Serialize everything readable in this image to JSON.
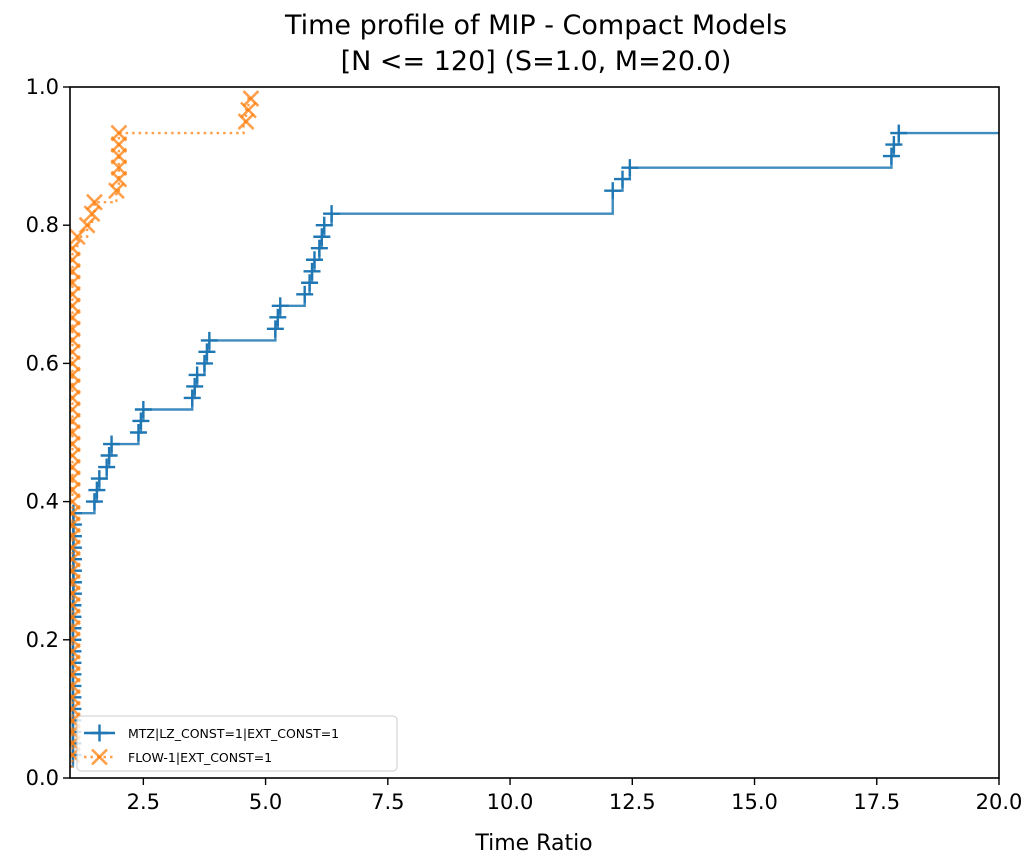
{
  "chart_data": {
    "type": "line",
    "title": "Time profile of MIP - Compact Models",
    "subtitle": "[N <= 120] (S=1.0, M=20.0)",
    "xlabel": "Time Ratio",
    "ylabel": "",
    "xlim": [
      1.0,
      20.0
    ],
    "ylim": [
      0.0,
      1.0
    ],
    "xticks": [
      "2.5",
      "5.0",
      "7.5",
      "10.0",
      "12.5",
      "15.0",
      "17.5",
      "20.0"
    ],
    "yticks": [
      "0.0",
      "0.2",
      "0.4",
      "0.6",
      "0.8",
      "1.0"
    ],
    "grid": false,
    "legend_position": "lower-left",
    "step": "post",
    "series": [
      {
        "name": "MTZ|LZ_CONST=1|EXT_CONST=1",
        "color": "#1f77b4",
        "linestyle": "solid",
        "marker": "plus",
        "x": [
          1.0,
          1.06,
          1.06,
          1.06,
          1.06,
          1.06,
          1.06,
          1.06,
          1.06,
          1.06,
          1.06,
          1.06,
          1.06,
          1.06,
          1.06,
          1.07,
          1.07,
          1.07,
          1.07,
          1.07,
          1.07,
          1.07,
          1.07,
          1.08,
          1.1,
          1.12,
          1.15,
          1.5,
          1.55,
          1.6,
          1.75,
          1.8,
          1.85,
          2.4,
          2.45,
          2.5,
          3.5,
          3.55,
          3.6,
          3.75,
          3.8,
          3.85,
          5.2,
          5.25,
          5.3,
          5.8,
          5.9,
          5.95,
          6.0,
          6.1,
          6.15,
          6.2,
          6.35,
          12.1,
          12.3,
          12.45,
          17.8,
          17.85,
          17.95,
          20.0
        ],
        "y": [
          0.0167,
          0.0333,
          0.05,
          0.0667,
          0.0833,
          0.1,
          0.1167,
          0.1333,
          0.15,
          0.1667,
          0.1833,
          0.2,
          0.2167,
          0.2333,
          0.25,
          0.2667,
          0.2833,
          0.3,
          0.3167,
          0.3333,
          0.35,
          0.3667,
          0.3833,
          0.3833,
          0.3833,
          0.3833,
          0.3833,
          0.4,
          0.4167,
          0.4333,
          0.45,
          0.4667,
          0.4833,
          0.5,
          0.5167,
          0.5333,
          0.55,
          0.5667,
          0.5833,
          0.6,
          0.6167,
          0.6333,
          0.65,
          0.6667,
          0.6833,
          0.7,
          0.7167,
          0.7333,
          0.75,
          0.7667,
          0.7833,
          0.8,
          0.8167,
          0.85,
          0.8667,
          0.8833,
          0.9,
          0.9167,
          0.9333,
          0.9333
        ],
        "markers_x": [
          1.06,
          1.06,
          1.06,
          1.06,
          1.06,
          1.06,
          1.06,
          1.06,
          1.06,
          1.06,
          1.06,
          1.06,
          1.06,
          1.06,
          1.07,
          1.07,
          1.07,
          1.07,
          1.07,
          1.07,
          1.07,
          1.07,
          1.5,
          1.55,
          1.6,
          1.75,
          1.8,
          1.85,
          2.4,
          2.45,
          2.5,
          3.5,
          3.55,
          3.6,
          3.75,
          3.8,
          3.85,
          5.2,
          5.25,
          5.3,
          5.8,
          5.9,
          5.95,
          6.0,
          6.1,
          6.15,
          6.2,
          6.35,
          12.1,
          12.3,
          12.45,
          17.8,
          17.85,
          17.95
        ],
        "markers_y": [
          0.0333,
          0.05,
          0.0667,
          0.0833,
          0.1,
          0.1167,
          0.1333,
          0.15,
          0.1667,
          0.1833,
          0.2,
          0.2167,
          0.2333,
          0.25,
          0.2667,
          0.2833,
          0.3,
          0.3167,
          0.3333,
          0.35,
          0.3667,
          0.3833,
          0.4,
          0.4167,
          0.4333,
          0.45,
          0.4667,
          0.4833,
          0.5,
          0.5167,
          0.5333,
          0.55,
          0.5667,
          0.5833,
          0.6,
          0.6167,
          0.6333,
          0.65,
          0.6667,
          0.6833,
          0.7,
          0.7167,
          0.7333,
          0.75,
          0.7667,
          0.7833,
          0.8,
          0.8167,
          0.85,
          0.8667,
          0.8833,
          0.9,
          0.9167,
          0.9333
        ]
      },
      {
        "name": "FLOW-1|EXT_CONST=1",
        "color": "#ff7f0e",
        "linestyle": "dotted",
        "marker": "x",
        "x": [
          1.0,
          1.05,
          1.05,
          1.05,
          1.05,
          1.05,
          1.05,
          1.05,
          1.05,
          1.05,
          1.05,
          1.05,
          1.05,
          1.05,
          1.05,
          1.05,
          1.05,
          1.05,
          1.05,
          1.05,
          1.05,
          1.05,
          1.05,
          1.05,
          1.05,
          1.05,
          1.05,
          1.05,
          1.05,
          1.05,
          1.05,
          1.05,
          1.05,
          1.05,
          1.05,
          1.05,
          1.05,
          1.05,
          1.05,
          1.05,
          1.05,
          1.05,
          1.05,
          1.05,
          1.05,
          1.05,
          1.1,
          1.15,
          1.35,
          1.45,
          1.5,
          1.95,
          2.0,
          2.0,
          2.0,
          2.0,
          2.0,
          2.0,
          4.55,
          4.6,
          4.65,
          4.7
        ],
        "y": [
          0.0167,
          0.0333,
          0.05,
          0.0667,
          0.0833,
          0.1,
          0.1167,
          0.1333,
          0.15,
          0.1667,
          0.1833,
          0.2,
          0.2167,
          0.2333,
          0.25,
          0.2667,
          0.2833,
          0.3,
          0.3167,
          0.3333,
          0.35,
          0.3667,
          0.3833,
          0.4,
          0.4167,
          0.4333,
          0.45,
          0.4667,
          0.4833,
          0.5,
          0.5167,
          0.5333,
          0.55,
          0.5667,
          0.5833,
          0.6,
          0.6167,
          0.6333,
          0.65,
          0.6667,
          0.6833,
          0.7,
          0.7167,
          0.7333,
          0.75,
          0.7667,
          0.7667,
          0.7833,
          0.8,
          0.8167,
          0.8333,
          0.85,
          0.8667,
          0.8833,
          0.9,
          0.9167,
          0.9333,
          0.9333,
          0.95,
          0.9667,
          0.9833,
          0.9833
        ],
        "markers_x": [
          1.05,
          1.05,
          1.05,
          1.05,
          1.05,
          1.05,
          1.05,
          1.05,
          1.05,
          1.05,
          1.05,
          1.05,
          1.05,
          1.05,
          1.05,
          1.05,
          1.05,
          1.05,
          1.05,
          1.05,
          1.05,
          1.05,
          1.05,
          1.05,
          1.05,
          1.05,
          1.05,
          1.05,
          1.05,
          1.05,
          1.05,
          1.05,
          1.05,
          1.05,
          1.05,
          1.05,
          1.05,
          1.05,
          1.05,
          1.05,
          1.05,
          1.05,
          1.05,
          1.05,
          1.05,
          1.15,
          1.35,
          1.45,
          1.5,
          1.95,
          2.0,
          2.0,
          2.0,
          2.0,
          2.0,
          4.6,
          4.65,
          4.7
        ],
        "markers_y": [
          0.0333,
          0.05,
          0.0667,
          0.0833,
          0.1,
          0.1167,
          0.1333,
          0.15,
          0.1667,
          0.1833,
          0.2,
          0.2167,
          0.2333,
          0.25,
          0.2667,
          0.2833,
          0.3,
          0.3167,
          0.3333,
          0.35,
          0.3667,
          0.3833,
          0.4,
          0.4167,
          0.4333,
          0.45,
          0.4667,
          0.4833,
          0.5,
          0.5167,
          0.5333,
          0.55,
          0.5667,
          0.5833,
          0.6,
          0.6167,
          0.6333,
          0.65,
          0.6667,
          0.6833,
          0.7,
          0.7167,
          0.7333,
          0.75,
          0.7667,
          0.7833,
          0.8,
          0.8167,
          0.8333,
          0.85,
          0.8667,
          0.8833,
          0.9,
          0.9167,
          0.9333,
          0.95,
          0.9667,
          0.9833
        ]
      }
    ]
  }
}
